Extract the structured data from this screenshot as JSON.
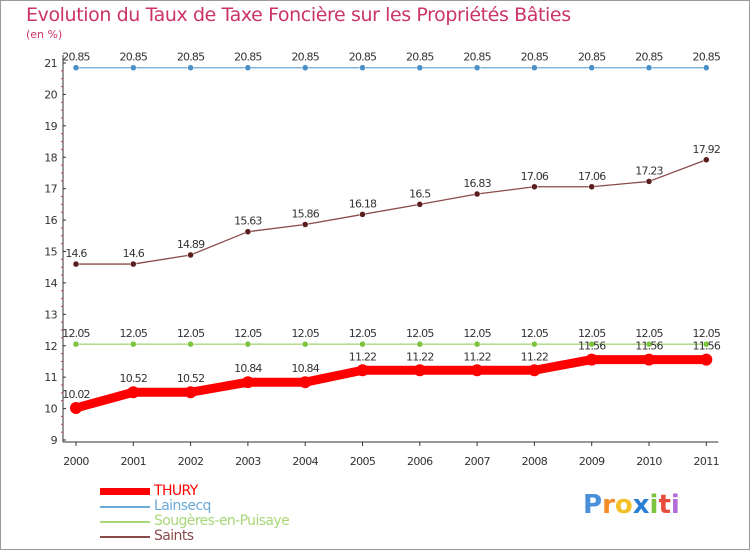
{
  "chart_data": {
    "type": "line",
    "title": "Evolution du Taux de Taxe Foncière sur les Propriétés Bâties",
    "subtitle": "(en %)",
    "x": [
      "2000",
      "2001",
      "2002",
      "2003",
      "2004",
      "2005",
      "2006",
      "2007",
      "2008",
      "2009",
      "2010",
      "2011"
    ],
    "y_ticks": [
      "9",
      "10",
      "11",
      "12",
      "13",
      "14",
      "15",
      "16",
      "17",
      "18",
      "19",
      "20",
      "21"
    ],
    "ylim": [
      9,
      21
    ],
    "series": [
      {
        "name": "Lainsecq",
        "color": "#6aaad6",
        "marker_color": "#4a90c8",
        "values": [
          20.85,
          20.85,
          20.85,
          20.85,
          20.85,
          20.85,
          20.85,
          20.85,
          20.85,
          20.85,
          20.85,
          20.85
        ],
        "labels": [
          "20.85",
          "20.85",
          "20.85",
          "20.85",
          "20.85",
          "20.85",
          "20.85",
          "20.85",
          "20.85",
          "20.85",
          "20.85",
          "20.85"
        ]
      },
      {
        "name": "Saints",
        "color": "#8b4a4a",
        "marker_color": "#5a1e1e",
        "values": [
          14.6,
          14.6,
          14.89,
          15.63,
          15.86,
          16.18,
          16.5,
          16.83,
          17.06,
          17.06,
          17.23,
          17.92
        ],
        "labels": [
          "14.6",
          "14.6",
          "14.89",
          "15.63",
          "15.86",
          "16.18",
          "16.5",
          "16.83",
          "17.06",
          "17.06",
          "17.23",
          "17.92"
        ]
      },
      {
        "name": "Sougères-en-Puisaye",
        "color": "#a8d878",
        "marker_color": "#7cc440",
        "values": [
          12.05,
          12.05,
          12.05,
          12.05,
          12.05,
          12.05,
          12.05,
          12.05,
          12.05,
          12.05,
          12.05,
          12.05
        ],
        "labels": [
          "12.05",
          "12.05",
          "12.05",
          "12.05",
          "12.05",
          "12.05",
          "12.05",
          "12.05",
          "12.05",
          "12.05",
          "12.05",
          "12.05"
        ]
      },
      {
        "name": "THURY",
        "color": "#ff0000",
        "marker_color": "#ff0000",
        "values": [
          10.02,
          10.52,
          10.52,
          10.84,
          10.84,
          11.22,
          11.22,
          11.22,
          11.22,
          11.56,
          11.56,
          11.56
        ],
        "labels": [
          "10.02",
          "10.52",
          "10.52",
          "10.84",
          "10.84",
          "11.22",
          "11.22",
          "11.22",
          "11.22",
          "11.56",
          "11.56",
          "11.56"
        ]
      }
    ],
    "legend": [
      {
        "name": "THURY",
        "color": "#ff0000"
      },
      {
        "name": "Lainsecq",
        "color": "#6aaad6"
      },
      {
        "name": "Sougères-en-Puisaye",
        "color": "#a8d878"
      },
      {
        "name": "Saints",
        "color": "#8b4a4a"
      }
    ],
    "grid": false
  },
  "branding": {
    "logo_letters": [
      "P",
      "r",
      "o",
      "x",
      "i",
      "t",
      "i"
    ],
    "logo_colors": [
      "#4a90d9",
      "#f28c28",
      "#f2c029",
      "#2a7fd4",
      "#7cc440",
      "#e84c3d",
      "#b36ad8"
    ]
  }
}
